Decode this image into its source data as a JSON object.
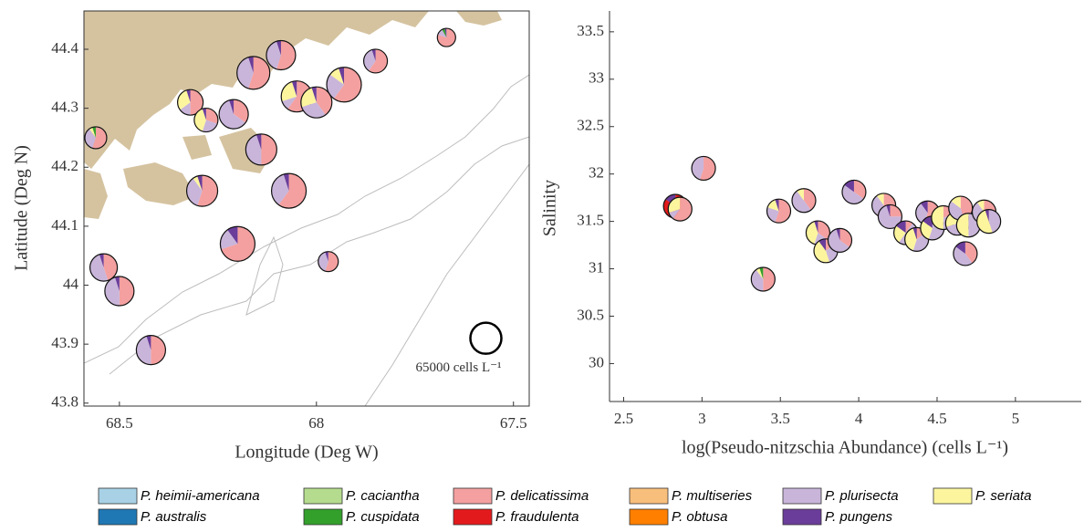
{
  "chart_data": [
    {
      "type": "pie-map",
      "xlabel": "Longitude (Deg W)",
      "ylabel": "Latitude (Deg N)",
      "xlim": [
        68.59,
        67.46
      ],
      "xticks": [
        68.5,
        68,
        67.5
      ],
      "ylim": [
        43.795,
        44.465
      ],
      "yticks": [
        43.8,
        43.9,
        44,
        44.1,
        44.2,
        44.3,
        44.4
      ],
      "size_reference": {
        "value": 65000,
        "label": "65000 cells L⁻¹",
        "x": 67.57,
        "y": 43.91
      },
      "points": [
        {
          "x": 67.67,
          "y": 44.42,
          "size": 22500,
          "values": [
            0,
            0,
            80,
            0,
            12,
            0,
            0,
            5,
            0,
            0,
            3
          ]
        },
        {
          "x": 68.09,
          "y": 44.39,
          "size": 57600,
          "values": [
            0,
            0,
            55,
            0,
            40,
            0,
            0,
            0,
            0,
            0,
            5
          ]
        },
        {
          "x": 67.85,
          "y": 44.38,
          "size": 38000,
          "values": [
            0,
            0,
            60,
            0,
            35,
            0,
            0,
            0,
            0,
            0,
            5
          ]
        },
        {
          "x": 68.16,
          "y": 44.36,
          "size": 72900,
          "values": [
            0,
            0,
            55,
            0,
            40,
            0,
            0,
            0,
            0,
            0,
            5
          ]
        },
        {
          "x": 67.93,
          "y": 44.34,
          "size": 81200,
          "values": [
            0,
            0,
            60,
            0,
            25,
            10,
            0,
            0,
            0,
            0,
            5
          ]
        },
        {
          "x": 68.32,
          "y": 44.31,
          "size": 44100,
          "values": [
            0,
            0,
            50,
            0,
            15,
            30,
            0,
            0,
            0,
            0,
            5
          ]
        },
        {
          "x": 68.05,
          "y": 44.32,
          "size": 65000,
          "values": [
            0,
            0,
            60,
            0,
            10,
            25,
            0,
            0,
            0,
            0,
            5
          ]
        },
        {
          "x": 68.0,
          "y": 44.31,
          "size": 65000,
          "values": [
            0,
            0,
            40,
            0,
            30,
            25,
            0,
            0,
            0,
            0,
            5
          ]
        },
        {
          "x": 68.28,
          "y": 44.28,
          "size": 38000,
          "values": [
            0,
            0,
            30,
            0,
            25,
            40,
            0,
            0,
            0,
            0,
            5
          ]
        },
        {
          "x": 68.21,
          "y": 44.29,
          "size": 57600,
          "values": [
            0,
            0,
            35,
            0,
            60,
            0,
            0,
            0,
            0,
            0,
            5
          ]
        },
        {
          "x": 68.56,
          "y": 44.25,
          "size": 32400,
          "values": [
            0,
            0,
            55,
            0,
            35,
            5,
            0,
            5,
            0,
            0,
            0
          ]
        },
        {
          "x": 68.14,
          "y": 44.23,
          "size": 65000,
          "values": [
            0,
            0,
            50,
            0,
            45,
            0,
            0,
            0,
            0,
            0,
            5
          ]
        },
        {
          "x": 68.29,
          "y": 44.16,
          "size": 65000,
          "values": [
            0,
            0,
            55,
            0,
            35,
            5,
            0,
            0,
            0,
            0,
            5
          ]
        },
        {
          "x": 68.07,
          "y": 44.16,
          "size": 81200,
          "values": [
            0,
            0,
            60,
            0,
            35,
            0,
            0,
            0,
            0,
            0,
            5
          ]
        },
        {
          "x": 68.2,
          "y": 44.07,
          "size": 81200,
          "values": [
            0,
            0,
            70,
            0,
            20,
            0,
            0,
            0,
            0,
            0,
            10
          ]
        },
        {
          "x": 67.97,
          "y": 44.04,
          "size": 27200,
          "values": [
            0,
            0,
            55,
            0,
            40,
            0,
            0,
            0,
            0,
            0,
            5
          ]
        },
        {
          "x": 68.54,
          "y": 44.03,
          "size": 50600,
          "values": [
            0,
            0,
            45,
            0,
            50,
            0,
            0,
            0,
            0,
            0,
            5
          ]
        },
        {
          "x": 68.5,
          "y": 43.99,
          "size": 57600,
          "values": [
            0,
            0,
            50,
            0,
            45,
            0,
            0,
            0,
            0,
            0,
            5
          ]
        },
        {
          "x": 68.42,
          "y": 43.89,
          "size": 57600,
          "values": [
            0,
            0,
            50,
            0,
            45,
            0,
            0,
            0,
            0,
            0,
            5
          ]
        }
      ]
    },
    {
      "type": "pie-scatter",
      "xlabel": "log(Pseudo-nitzschia Abundance) (cells L⁻¹)",
      "ylabel": "Salinity",
      "xlim": [
        2.41,
        5.42
      ],
      "xticks": [
        2.5,
        3,
        3.5,
        4,
        4.5,
        5
      ],
      "ylim": [
        29.6,
        33.72
      ],
      "yticks": [
        30,
        30.5,
        31,
        31.5,
        32,
        32.5,
        33,
        33.5
      ],
      "points": [
        {
          "x": 2.83,
          "y": 31.66,
          "values": [
            0,
            0,
            0,
            0,
            0,
            0,
            0,
            0,
            85,
            0,
            15
          ]
        },
        {
          "x": 2.86,
          "y": 31.63,
          "values": [
            0,
            0,
            60,
            0,
            10,
            30,
            0,
            0,
            0,
            0,
            0
          ]
        },
        {
          "x": 3.01,
          "y": 32.06,
          "values": [
            0,
            0,
            55,
            0,
            45,
            0,
            0,
            0,
            0,
            0,
            0
          ]
        },
        {
          "x": 3.39,
          "y": 30.89,
          "values": [
            0,
            0,
            50,
            0,
            40,
            5,
            0,
            5,
            0,
            0,
            0
          ]
        },
        {
          "x": 3.49,
          "y": 31.61,
          "values": [
            0,
            0,
            55,
            0,
            25,
            15,
            0,
            0,
            0,
            0,
            5
          ]
        },
        {
          "x": 3.65,
          "y": 31.72,
          "values": [
            0,
            0,
            40,
            0,
            50,
            10,
            0,
            0,
            0,
            0,
            0
          ]
        },
        {
          "x": 3.74,
          "y": 31.38,
          "values": [
            0,
            0,
            35,
            0,
            20,
            40,
            0,
            0,
            0,
            0,
            5
          ]
        },
        {
          "x": 3.79,
          "y": 31.19,
          "values": [
            0,
            0,
            15,
            0,
            30,
            45,
            0,
            0,
            0,
            0,
            10
          ]
        },
        {
          "x": 3.88,
          "y": 31.3,
          "values": [
            0,
            0,
            35,
            0,
            60,
            0,
            0,
            0,
            0,
            0,
            5
          ]
        },
        {
          "x": 3.97,
          "y": 31.81,
          "values": [
            0,
            0,
            35,
            0,
            50,
            0,
            0,
            0,
            0,
            0,
            15
          ]
        },
        {
          "x": 4.16,
          "y": 31.67,
          "values": [
            0,
            0,
            60,
            0,
            30,
            10,
            0,
            0,
            0,
            0,
            0
          ]
        },
        {
          "x": 4.2,
          "y": 31.55,
          "values": [
            0,
            0,
            25,
            0,
            70,
            0,
            0,
            0,
            0,
            0,
            5
          ]
        },
        {
          "x": 4.3,
          "y": 31.38,
          "values": [
            0,
            0,
            10,
            0,
            50,
            25,
            0,
            0,
            0,
            0,
            15
          ]
        },
        {
          "x": 4.37,
          "y": 31.31,
          "values": [
            0,
            0,
            15,
            0,
            40,
            40,
            0,
            0,
            0,
            0,
            5
          ]
        },
        {
          "x": 4.44,
          "y": 31.59,
          "values": [
            0,
            0,
            55,
            0,
            35,
            0,
            0,
            0,
            0,
            0,
            10
          ]
        },
        {
          "x": 4.47,
          "y": 31.43,
          "values": [
            0,
            0,
            0,
            0,
            55,
            30,
            0,
            0,
            0,
            0,
            15
          ]
        },
        {
          "x": 4.54,
          "y": 31.54,
          "values": [
            0,
            0,
            20,
            0,
            30,
            50,
            0,
            0,
            0,
            0,
            0
          ]
        },
        {
          "x": 4.63,
          "y": 31.48,
          "values": [
            0,
            0,
            10,
            0,
            60,
            30,
            0,
            0,
            0,
            0,
            0
          ]
        },
        {
          "x": 4.65,
          "y": 31.64,
          "values": [
            0,
            0,
            45,
            0,
            40,
            15,
            0,
            0,
            0,
            0,
            0
          ]
        },
        {
          "x": 4.7,
          "y": 31.46,
          "values": [
            0,
            0,
            0,
            0,
            50,
            50,
            0,
            0,
            0,
            0,
            0
          ]
        },
        {
          "x": 4.68,
          "y": 31.16,
          "values": [
            0,
            0,
            40,
            0,
            45,
            0,
            0,
            0,
            0,
            0,
            15
          ]
        },
        {
          "x": 4.8,
          "y": 31.6,
          "values": [
            0,
            0,
            45,
            0,
            45,
            10,
            0,
            0,
            0,
            0,
            0
          ]
        },
        {
          "x": 4.83,
          "y": 31.5,
          "values": [
            0,
            0,
            0,
            0,
            45,
            50,
            0,
            0,
            0,
            0,
            5
          ]
        }
      ]
    }
  ],
  "legend": {
    "entries": [
      {
        "name": "P. heimii-americana",
        "color": "#a8d1e6"
      },
      {
        "name": "P. caciantha",
        "color": "#b5dc8e"
      },
      {
        "name": "P. delicatissima",
        "color": "#f4a0a0"
      },
      {
        "name": "P. multiseries",
        "color": "#f8bf7c"
      },
      {
        "name": "P. plurisecta",
        "color": "#c9b5da"
      },
      {
        "name": "P. seriata",
        "color": "#fcf59e"
      },
      {
        "name": "P. australis",
        "color": "#1f78b4"
      },
      {
        "name": "P. cuspidata",
        "color": "#33a02c"
      },
      {
        "name": "P. fraudulenta",
        "color": "#e31a1c"
      },
      {
        "name": "P. obtusa",
        "color": "#ff7f00"
      },
      {
        "name": "P. pungens",
        "color": "#6a3d9a"
      }
    ]
  }
}
